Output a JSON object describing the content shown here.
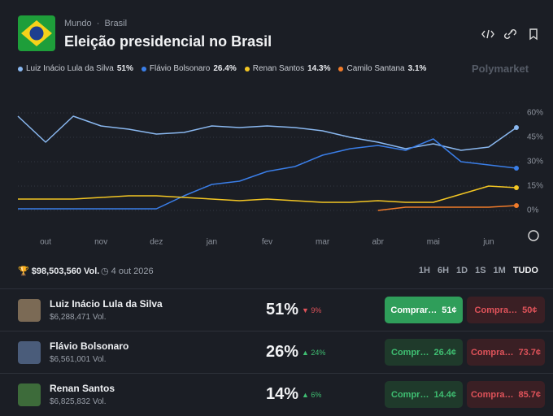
{
  "header": {
    "breadcrumb": [
      "Mundo",
      "Brasil"
    ],
    "title": "Eleição presidencial no Brasil",
    "brand": "Polymarket"
  },
  "chart_data": {
    "type": "line",
    "categories": [
      null,
      "out",
      null,
      "nov",
      null,
      "dez",
      null,
      "jan",
      null,
      "fev",
      null,
      "mar",
      null,
      "abr",
      null,
      "mai",
      null,
      "jun",
      null
    ],
    "series": [
      {
        "name": "Luiz Inácio Lula da Silva",
        "last_label": "51%",
        "color": "#8ab8f0",
        "values": [
          58,
          42,
          58,
          52,
          50,
          47,
          48,
          52,
          51,
          52,
          51,
          49,
          45,
          42,
          38,
          41,
          37,
          39,
          51
        ]
      },
      {
        "name": "Flávio Bolsonaro",
        "last_label": "26.4%",
        "color": "#3a7ee8",
        "values": [
          1,
          1,
          1,
          1,
          1,
          1,
          9,
          16,
          18,
          24,
          27,
          34,
          38,
          40,
          37,
          44,
          30,
          28,
          26
        ]
      },
      {
        "name": "Renan Santos",
        "last_label": "14.3%",
        "color": "#f3c623",
        "values": [
          7,
          7,
          7,
          8,
          9,
          9,
          8,
          7,
          6,
          7,
          6,
          5,
          5,
          6,
          5,
          5,
          10,
          15,
          14
        ]
      },
      {
        "name": "Camilo Santana",
        "last_label": "3.1%",
        "color": "#f07b2a",
        "values": [
          null,
          null,
          null,
          null,
          null,
          null,
          null,
          null,
          null,
          null,
          null,
          null,
          null,
          0,
          2,
          2,
          2,
          2,
          3
        ]
      }
    ],
    "ylim": [
      0,
      60
    ],
    "yticks": [
      {
        "value": 0,
        "label": "0%"
      },
      {
        "value": 15,
        "label": "15%"
      },
      {
        "value": 30,
        "label": "30%"
      },
      {
        "value": 45,
        "label": "45%"
      },
      {
        "value": 60,
        "label": "60%"
      }
    ],
    "grid": true
  },
  "summary": {
    "volume": "$98,503,560 Vol.",
    "date": "4 out 2026",
    "ranges": [
      "1H",
      "6H",
      "1D",
      "1S",
      "1M",
      "TUDO"
    ]
  },
  "outcomes": [
    {
      "name": "Luiz Inácio Lula da Silva",
      "volume": "$6,288,471 Vol.",
      "chance": "51%",
      "change": "9%",
      "direction": "down",
      "buy": "Comprar…",
      "buy_price": "51¢",
      "sell": "Compra…",
      "sell_price": "50¢"
    },
    {
      "name": "Flávio Bolsonaro",
      "volume": "$6,561,001 Vol.",
      "chance": "26%",
      "change": "24%",
      "direction": "up",
      "buy": "Compr…",
      "buy_price": "26.4¢",
      "sell": "Compra…",
      "sell_price": "73.7¢"
    },
    {
      "name": "Renan Santos",
      "volume": "$6,825,832 Vol.",
      "chance": "14%",
      "change": "6%",
      "direction": "up",
      "buy": "Compr…",
      "buy_price": "14.4¢",
      "sell": "Compra…",
      "sell_price": "85.7¢"
    }
  ]
}
